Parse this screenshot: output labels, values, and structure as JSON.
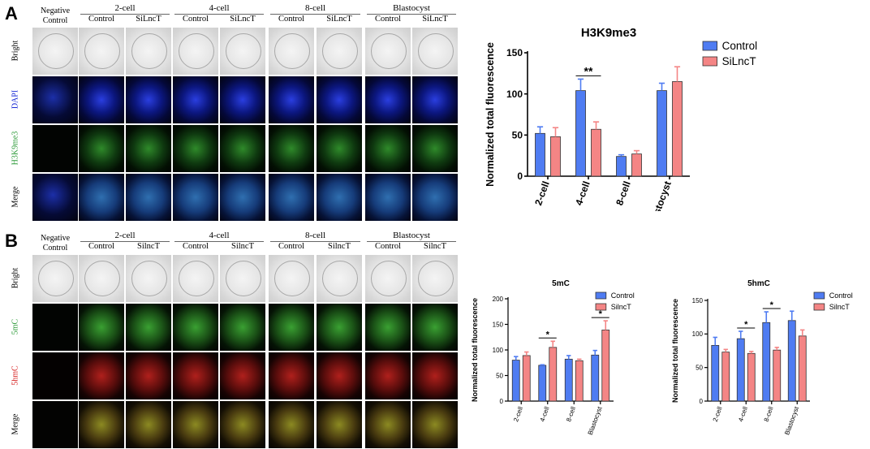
{
  "panels": [
    {
      "letter": "A",
      "neg_control": "Negative Control",
      "stages": [
        {
          "name": "2-cell",
          "subs": [
            "Control",
            "SiLncT"
          ]
        },
        {
          "name": "4-cell",
          "subs": [
            "Control",
            "SiLncT"
          ]
        },
        {
          "name": "8-cell",
          "subs": [
            "Control",
            "SiLncT"
          ]
        },
        {
          "name": "Blastocyst",
          "subs": [
            "Control",
            "SiLncT"
          ]
        }
      ],
      "rows": [
        {
          "label": "Bright",
          "color": "#000000"
        },
        {
          "label": "DAPI",
          "color": "#1a2bd6"
        },
        {
          "label": "H3K9me3",
          "color": "#2e9b3a"
        },
        {
          "label": "Merge",
          "color": "#000000"
        }
      ]
    },
    {
      "letter": "B",
      "neg_control": "Negative Control",
      "stages": [
        {
          "name": "2-cell",
          "subs": [
            "Control",
            "SilncT"
          ]
        },
        {
          "name": "4-cell",
          "subs": [
            "Control",
            "SilncT"
          ]
        },
        {
          "name": "8-cell",
          "subs": [
            "Control",
            "SilncT"
          ]
        },
        {
          "name": "Blastocyst",
          "subs": [
            "Control",
            "SilncT"
          ]
        }
      ],
      "rows": [
        {
          "label": "Bright",
          "color": "#000000"
        },
        {
          "label": "5mC",
          "color": "#2e9b3a"
        },
        {
          "label": "5hmC",
          "color": "#d62020"
        },
        {
          "label": "Merge",
          "color": "#000000"
        }
      ]
    }
  ],
  "chart_data": [
    {
      "type": "bar",
      "title": "H3K9me3",
      "ylabel": "Normalized total fluorescence",
      "xlabel": "",
      "categories": [
        "2-cell",
        "4-cell",
        "8-cell",
        "blastocyst"
      ],
      "ylim": [
        0,
        150
      ],
      "yticks": [
        "0",
        "50",
        "100",
        "150"
      ],
      "series": [
        {
          "name": "Control",
          "color": "#4f7cf2",
          "values": [
            52,
            104,
            24,
            104
          ],
          "errors": [
            8,
            14,
            2,
            9
          ]
        },
        {
          "name": "SiLncT",
          "color": "#f48585",
          "values": [
            48,
            57,
            27,
            115
          ],
          "errors": [
            11,
            9,
            4,
            18
          ]
        }
      ],
      "annotations": [
        {
          "text": "**",
          "category_index": 1
        }
      ],
      "legend_position": "top-right"
    },
    {
      "type": "bar",
      "title": "5mC",
      "ylabel": "Normalized total fluorescence",
      "xlabel": "",
      "categories": [
        "2-cell",
        "4-cell",
        "8-cell",
        "Blastocyst"
      ],
      "ylim": [
        0,
        200
      ],
      "yticks": [
        "0",
        "50",
        "100",
        "150",
        "200"
      ],
      "series": [
        {
          "name": "Control",
          "color": "#4f7cf2",
          "values": [
            80,
            70,
            82,
            90
          ],
          "errors": [
            7,
            1,
            7,
            9
          ]
        },
        {
          "name": "SilncT",
          "color": "#f48585",
          "values": [
            89,
            105,
            79,
            139
          ],
          "errors": [
            7,
            12,
            3,
            18
          ]
        }
      ],
      "annotations": [
        {
          "text": "*",
          "category_index": 1
        },
        {
          "text": "*",
          "category_index": 3
        }
      ],
      "legend_position": "top-right"
    },
    {
      "type": "bar",
      "title": "5hmC",
      "ylabel": "Normalized total fluorescence",
      "xlabel": "",
      "categories": [
        "2-cell",
        "4-cell",
        "8-cell",
        "Blastocyst"
      ],
      "ylim": [
        0,
        150
      ],
      "yticks": [
        "0",
        "50",
        "100",
        "150"
      ],
      "series": [
        {
          "name": "Control",
          "color": "#4f7cf2",
          "values": [
            83,
            93,
            117,
            120
          ],
          "errors": [
            12,
            11,
            16,
            14
          ]
        },
        {
          "name": "SilncT",
          "color": "#f48585",
          "values": [
            73,
            71,
            76,
            97
          ],
          "errors": [
            4,
            3,
            4,
            9
          ]
        }
      ],
      "annotations": [
        {
          "text": "*",
          "category_index": 1
        },
        {
          "text": "*",
          "category_index": 2
        }
      ],
      "legend_position": "top-right"
    }
  ]
}
